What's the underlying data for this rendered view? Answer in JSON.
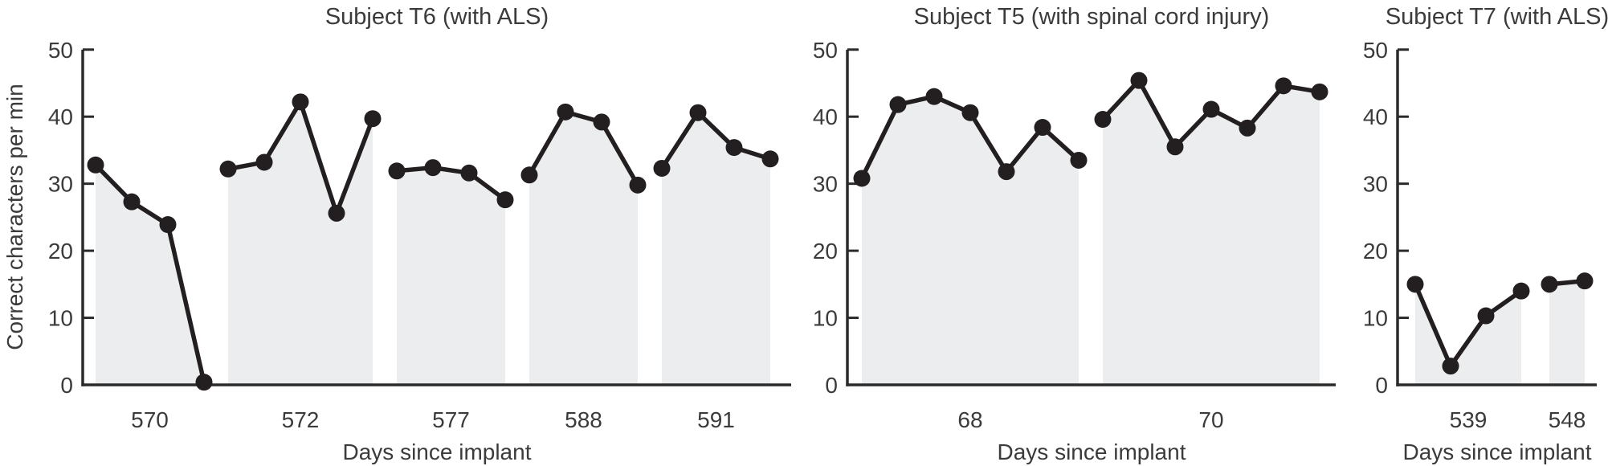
{
  "figure": {
    "ylabel": "Correct characters per min",
    "xlabel": "Days since implant"
  },
  "colors": {
    "series": "#231f20",
    "band_fill": "#ecedee",
    "axis": "#2b2b2b",
    "text": "#3b3b3b",
    "background": "#ffffff"
  },
  "chart_data": [
    {
      "type": "area",
      "title": "Subject T6 (with ALS)",
      "xlabel": "Days since implant",
      "ylabel": "Correct characters per min",
      "ylim": [
        0,
        50
      ],
      "yticks": [
        0,
        10,
        20,
        30,
        40,
        50
      ],
      "grid": false,
      "legend": false,
      "groups": [
        {
          "day": "570",
          "values": [
            32.8,
            27.3,
            23.9,
            0.4
          ]
        },
        {
          "day": "572",
          "values": [
            32.2,
            33.2,
            42.2,
            25.6,
            39.7
          ]
        },
        {
          "day": "577",
          "values": [
            31.9,
            32.4,
            31.6,
            27.6
          ]
        },
        {
          "day": "588",
          "values": [
            31.3,
            40.7,
            39.2,
            29.8
          ]
        },
        {
          "day": "591",
          "values": [
            32.3,
            40.6,
            35.4,
            33.7
          ]
        }
      ]
    },
    {
      "type": "area",
      "title": "Subject T5 (with spinal cord injury)",
      "xlabel": "Days since implant",
      "ylabel": "",
      "ylim": [
        0,
        50
      ],
      "yticks": [
        0,
        10,
        20,
        30,
        40,
        50
      ],
      "grid": false,
      "legend": false,
      "groups": [
        {
          "day": "68",
          "values": [
            30.8,
            41.8,
            43.0,
            40.6,
            31.8,
            38.4,
            33.5
          ]
        },
        {
          "day": "70",
          "values": [
            39.6,
            45.4,
            35.5,
            41.1,
            38.3,
            44.6,
            43.7
          ]
        }
      ]
    },
    {
      "type": "area",
      "title": "Subject T7 (with ALS)",
      "xlabel": "Days since implant",
      "ylabel": "",
      "ylim": [
        0,
        50
      ],
      "yticks": [
        0,
        10,
        20,
        30,
        40,
        50
      ],
      "grid": false,
      "legend": false,
      "groups": [
        {
          "day": "539",
          "values": [
            15.0,
            2.8,
            10.3,
            14.0
          ]
        },
        {
          "day": "548",
          "values": [
            15.0,
            15.5
          ]
        }
      ]
    }
  ]
}
